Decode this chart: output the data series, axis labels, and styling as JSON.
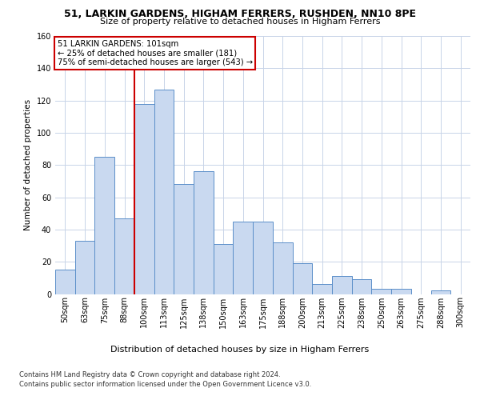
{
  "title_line1": "51, LARKIN GARDENS, HIGHAM FERRERS, RUSHDEN, NN10 8PE",
  "title_line2": "Size of property relative to detached houses in Higham Ferrers",
  "xlabel": "Distribution of detached houses by size in Higham Ferrers",
  "ylabel": "Number of detached properties",
  "categories": [
    "50sqm",
    "63sqm",
    "75sqm",
    "88sqm",
    "100sqm",
    "113sqm",
    "125sqm",
    "138sqm",
    "150sqm",
    "163sqm",
    "175sqm",
    "188sqm",
    "200sqm",
    "213sqm",
    "225sqm",
    "238sqm",
    "250sqm",
    "263sqm",
    "275sqm",
    "288sqm",
    "300sqm"
  ],
  "values": [
    15,
    33,
    85,
    47,
    118,
    127,
    68,
    76,
    31,
    45,
    45,
    32,
    19,
    6,
    11,
    9,
    3,
    3,
    0,
    2,
    0
  ],
  "bar_color": "#c9d9f0",
  "bar_edge_color": "#5b8fc9",
  "vline_x_index": 4,
  "vline_color": "#cc0000",
  "annotation_text": "51 LARKIN GARDENS: 101sqm\n← 25% of detached houses are smaller (181)\n75% of semi-detached houses are larger (543) →",
  "annotation_box_color": "#ffffff",
  "annotation_box_edge": "#cc0000",
  "ylim": [
    0,
    160
  ],
  "yticks": [
    0,
    20,
    40,
    60,
    80,
    100,
    120,
    140,
    160
  ],
  "footer1": "Contains HM Land Registry data © Crown copyright and database right 2024.",
  "footer2": "Contains public sector information licensed under the Open Government Licence v3.0.",
  "bg_color": "#ffffff",
  "grid_color": "#c8d4e8",
  "title1_fontsize": 9.0,
  "title2_fontsize": 8.0,
  "ylabel_fontsize": 7.5,
  "xlabel_fontsize": 8.0,
  "tick_fontsize": 7.0,
  "footer_fontsize": 6.0
}
